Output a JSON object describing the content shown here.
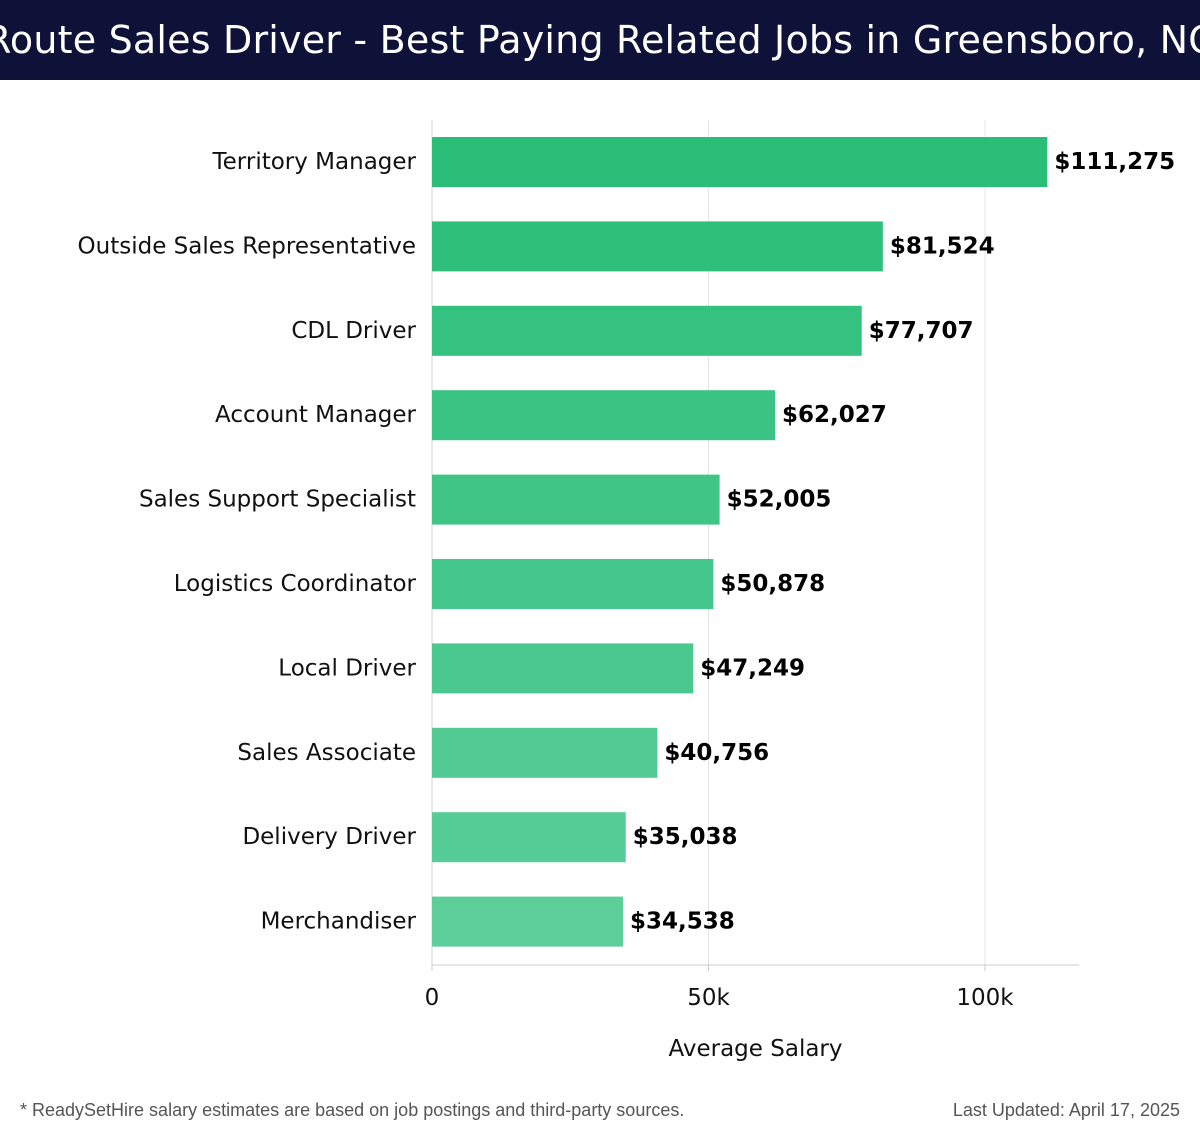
{
  "header": {
    "title": "Route Sales Driver - Best Paying Related Jobs in Greensboro, NC",
    "background": "#0f1238"
  },
  "chart_data": {
    "type": "bar",
    "orientation": "horizontal",
    "title": "Route Sales Driver - Best Paying Related Jobs in Greensboro, NC",
    "xlabel": "Average Salary",
    "ylabel": "",
    "categories": [
      "Territory Manager",
      "Outside Sales Representative",
      "CDL Driver",
      "Account Manager",
      "Sales Support Specialist",
      "Logistics Coordinator",
      "Local Driver",
      "Sales Associate",
      "Delivery Driver",
      "Merchandiser"
    ],
    "values": [
      111275,
      81524,
      77707,
      62027,
      52005,
      50878,
      47249,
      40756,
      35038,
      34538
    ],
    "value_labels": [
      "$111,275",
      "$81,524",
      "$77,707",
      "$62,027",
      "$52,005",
      "$50,878",
      "$47,249",
      "$40,756",
      "$35,038",
      "$34,538"
    ],
    "xlim": [
      0,
      117000
    ],
    "xticks": [
      0,
      50000,
      100000
    ],
    "xtick_labels": [
      "0",
      "50k",
      "100k"
    ],
    "grid": true,
    "bar_color_top": "#2abd77",
    "bar_color_bottom": "#5bce9a"
  },
  "footer": {
    "note": "* ReadySetHire salary estimates are based on job postings and third-party sources.",
    "updated": "Last Updated: April 17, 2025"
  }
}
